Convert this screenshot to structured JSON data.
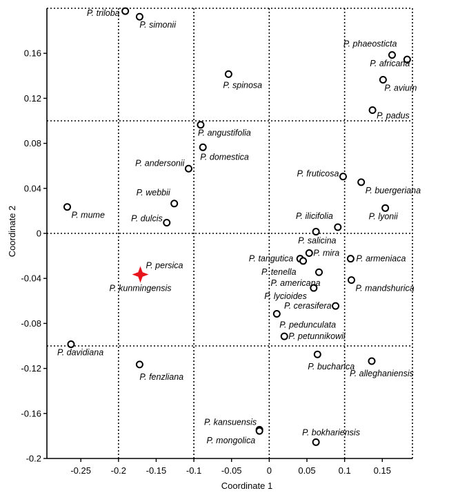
{
  "chart_data": {
    "type": "scatter",
    "xlabel": "Coordinate 1",
    "ylabel": "Coordinate 2",
    "xlim": [
      -0.295,
      0.19
    ],
    "ylim": [
      -0.2,
      0.2
    ],
    "x_ticks": [
      -0.25,
      -0.2,
      -0.15,
      -0.1,
      -0.05,
      0,
      0.05,
      0.1,
      0.15
    ],
    "x_tick_labels": [
      "-0.25",
      "-0.2",
      "-0.15",
      "-0.1",
      "-0.05",
      "0",
      "0.05",
      "0.1",
      "0.15"
    ],
    "y_ticks": [
      -0.2,
      -0.16,
      -0.12,
      -0.08,
      -0.04,
      0,
      0.04,
      0.08,
      0.12,
      0.16
    ],
    "y_tick_labels": [
      "-0.2",
      "-0.16",
      "-0.12",
      "-0.08",
      "-0.04",
      "0",
      "0.04",
      "0.08",
      "0.12",
      "0.16"
    ],
    "dotted_grid_x": [
      -0.2,
      -0.1,
      0,
      0.1
    ],
    "dotted_grid_y": [
      0.1,
      0,
      -0.1
    ],
    "colors": {
      "highlight": "#e8141c",
      "default": "#000000"
    },
    "points": [
      {
        "label": "P. triloba",
        "x": -0.191,
        "y": 0.1975,
        "anchor": "end",
        "side": "right-up"
      },
      {
        "label": "P. simonii",
        "x": -0.172,
        "y": 0.1925
      },
      {
        "label": "P. phaeosticta",
        "x": 0.163,
        "y": 0.1585
      },
      {
        "label": "P. africana",
        "x": 0.183,
        "y": 0.1545
      },
      {
        "label": "P. avium",
        "x": 0.151,
        "y": 0.1365
      },
      {
        "label": "P. padus",
        "x": 0.137,
        "y": 0.1095
      },
      {
        "label": "P. spinosa",
        "x": -0.054,
        "y": 0.1415
      },
      {
        "label": "P. angustifolia",
        "x": -0.091,
        "y": 0.0965
      },
      {
        "label": "P. domestica",
        "x": -0.088,
        "y": 0.0765
      },
      {
        "label": "P. andersonii",
        "x": -0.107,
        "y": 0.0575
      },
      {
        "label": "P. fruticosa",
        "x": 0.098,
        "y": 0.0505
      },
      {
        "label": "P. buergeriana",
        "x": 0.122,
        "y": 0.0455
      },
      {
        "label": "P. webbii",
        "x": -0.126,
        "y": 0.0265
      },
      {
        "label": "P. mume",
        "x": -0.268,
        "y": 0.0235
      },
      {
        "label": "P. lyonii",
        "x": 0.154,
        "y": 0.0225
      },
      {
        "label": "P. dulcis",
        "x": -0.136,
        "y": 0.0095
      },
      {
        "label": "P. ilicifolia",
        "x": 0.091,
        "y": 0.0055
      },
      {
        "label": "P. salicina",
        "x": 0.062,
        "y": 0.0015
      },
      {
        "label": "P. mira",
        "x": 0.053,
        "y": -0.0175
      },
      {
        "label": "P. tangutica",
        "x": 0.041,
        "y": -0.0225
      },
      {
        "label": "P. tenella",
        "x": 0.045,
        "y": -0.0245
      },
      {
        "label": "P. armeniaca",
        "x": 0.108,
        "y": -0.0225
      },
      {
        "label": "P. americana",
        "x": 0.066,
        "y": -0.0345
      },
      {
        "label": "P. mandshurica",
        "x": 0.109,
        "y": -0.0415
      },
      {
        "label": "P. lycioides",
        "x": 0.059,
        "y": -0.0485
      },
      {
        "label": "P. cerasifera",
        "x": 0.088,
        "y": -0.0645
      },
      {
        "label": "P. pedunculata",
        "x": 0.01,
        "y": -0.0715
      },
      {
        "label": "P. petunnikowii",
        "x": 0.02,
        "y": -0.0915
      },
      {
        "label": "P. davidiana",
        "x": -0.263,
        "y": -0.0985
      },
      {
        "label": "P. bucharica",
        "x": 0.064,
        "y": -0.1075
      },
      {
        "label": "P. alleghaniensis",
        "x": 0.136,
        "y": -0.1135
      },
      {
        "label": "P. fenzliana",
        "x": -0.172,
        "y": -0.1165
      },
      {
        "label": "P. kansuensis",
        "x": -0.013,
        "y": -0.1745
      },
      {
        "label": "P. mongolica",
        "x": -0.013,
        "y": -0.1755
      },
      {
        "label": "P. bokhariensis",
        "x": 0.062,
        "y": -0.1855
      },
      {
        "label": "P. persica",
        "x": -0.171,
        "y": -0.0365
      },
      {
        "label": "P. kunmingensis",
        "x": -0.171,
        "y": -0.0365,
        "highlight": true
      }
    ]
  }
}
